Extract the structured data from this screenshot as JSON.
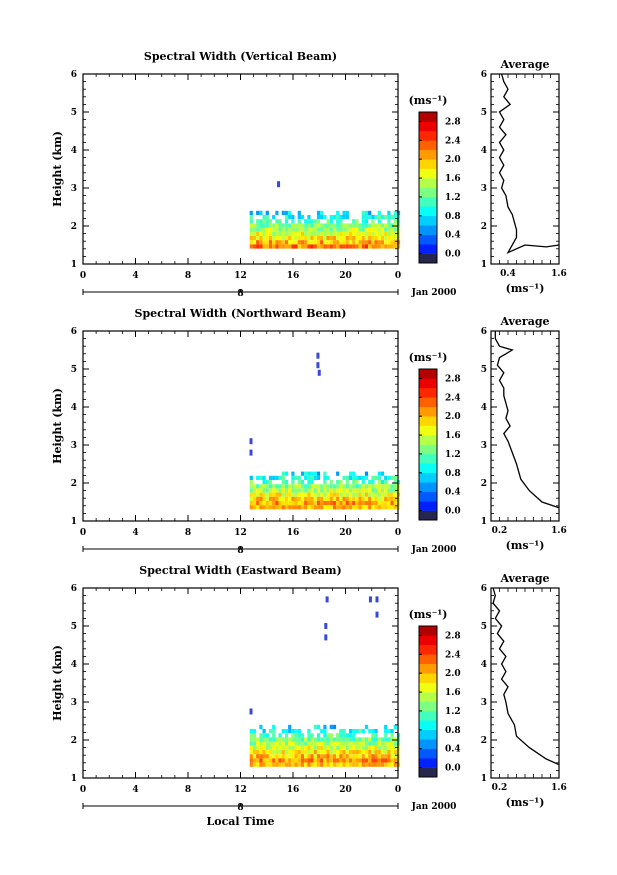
{
  "chart_data": [
    {
      "type": "heatmap",
      "title": "Spectral Width (Vertical Beam)",
      "ylabel": "Height (km)",
      "xlabel": "",
      "x_ticks": [
        "0",
        "4",
        "8",
        "12",
        "16",
        "20",
        "0"
      ],
      "xlim": [
        0,
        24
      ],
      "y_ticks": [
        "1",
        "2",
        "3",
        "4",
        "5",
        "6"
      ],
      "ylim": [
        1,
        6
      ],
      "date_label": "8",
      "date_suffix": "Jan 2000",
      "data_start_hour": 12.7,
      "data_top_km": 2.4,
      "data_bottom_km": 1.4,
      "isolated_points": [
        {
          "x": 14.9,
          "y": 3.1
        }
      ],
      "colorbar": {
        "unit": "(ms⁻¹)",
        "ticks": [
          "0.0",
          "0.4",
          "0.8",
          "1.2",
          "1.6",
          "2.0",
          "2.4",
          "2.8"
        ],
        "range": [
          0,
          3.2
        ]
      },
      "average": {
        "title": "Average",
        "x_ticks": [
          "0.4",
          "1.6"
        ],
        "xlim": [
          0,
          1.6
        ],
        "xlabel": "(ms⁻¹)",
        "y_ticks": [
          "1",
          "2",
          "3",
          "4",
          "5",
          "6"
        ],
        "ylim": [
          1,
          6
        ],
        "profile": [
          [
            1.6,
            1.5
          ],
          [
            1.3,
            1.45
          ],
          [
            0.8,
            1.5
          ],
          [
            0.4,
            1.3
          ],
          [
            0.6,
            1.7
          ],
          [
            0.6,
            1.9
          ],
          [
            0.55,
            2.1
          ],
          [
            0.5,
            2.3
          ],
          [
            0.4,
            2.5
          ],
          [
            0.35,
            2.8
          ],
          [
            0.25,
            3.0
          ],
          [
            0.3,
            3.2
          ],
          [
            0.2,
            3.4
          ],
          [
            0.3,
            3.6
          ],
          [
            0.2,
            3.8
          ],
          [
            0.3,
            4.0
          ],
          [
            0.2,
            4.2
          ],
          [
            0.35,
            4.4
          ],
          [
            0.2,
            4.6
          ],
          [
            0.3,
            4.8
          ],
          [
            0.2,
            5.0
          ],
          [
            0.45,
            5.2
          ],
          [
            0.3,
            5.4
          ],
          [
            0.4,
            5.6
          ],
          [
            0.3,
            5.8
          ],
          [
            0.25,
            6.0
          ]
        ]
      }
    },
    {
      "type": "heatmap",
      "title": "Spectral Width (Northward Beam)",
      "ylabel": "Height (km)",
      "xlabel": "",
      "x_ticks": [
        "0",
        "4",
        "8",
        "12",
        "16",
        "20",
        "0"
      ],
      "xlim": [
        0,
        24
      ],
      "y_ticks": [
        "1",
        "2",
        "3",
        "4",
        "5",
        "6"
      ],
      "ylim": [
        1,
        6
      ],
      "date_label": "8",
      "date_suffix": "Jan 2000",
      "data_start_hour": 12.7,
      "data_top_km": 2.3,
      "data_bottom_km": 1.35,
      "isolated_points": [
        {
          "x": 17.9,
          "y": 5.35
        },
        {
          "x": 17.9,
          "y": 5.1
        },
        {
          "x": 18.0,
          "y": 4.9
        },
        {
          "x": 12.8,
          "y": 3.1
        },
        {
          "x": 12.8,
          "y": 2.8
        }
      ],
      "colorbar": {
        "unit": "(ms⁻¹)",
        "ticks": [
          "0.0",
          "0.4",
          "0.8",
          "1.2",
          "1.6",
          "2.0",
          "2.4",
          "2.8"
        ],
        "range": [
          0,
          3.2
        ]
      },
      "average": {
        "title": "Average",
        "x_ticks": [
          "0.2",
          "1.6"
        ],
        "xlim": [
          0,
          1.6
        ],
        "xlabel": "(ms⁻¹)",
        "y_ticks": [
          "1",
          "2",
          "3",
          "4",
          "5",
          "6"
        ],
        "ylim": [
          1,
          6
        ],
        "profile": [
          [
            1.6,
            1.35
          ],
          [
            1.2,
            1.5
          ],
          [
            0.9,
            1.8
          ],
          [
            0.7,
            2.1
          ],
          [
            0.6,
            2.5
          ],
          [
            0.5,
            2.8
          ],
          [
            0.4,
            3.1
          ],
          [
            0.3,
            3.3
          ],
          [
            0.45,
            3.5
          ],
          [
            0.35,
            3.7
          ],
          [
            0.4,
            3.9
          ],
          [
            0.35,
            4.1
          ],
          [
            0.3,
            4.3
          ],
          [
            0.3,
            4.5
          ],
          [
            0.2,
            4.7
          ],
          [
            0.3,
            4.9
          ],
          [
            0.15,
            5.1
          ],
          [
            0.2,
            5.3
          ],
          [
            0.5,
            5.5
          ],
          [
            0.2,
            5.6
          ],
          [
            0.1,
            5.8
          ],
          [
            0.1,
            6.0
          ]
        ]
      }
    },
    {
      "type": "heatmap",
      "title": "Spectral Width (Eastward Beam)",
      "ylabel": "Height (km)",
      "xlabel": "Local Time",
      "x_ticks": [
        "0",
        "4",
        "8",
        "12",
        "16",
        "20",
        "0"
      ],
      "xlim": [
        0,
        24
      ],
      "y_ticks": [
        "1",
        "2",
        "3",
        "4",
        "5",
        "6"
      ],
      "ylim": [
        1,
        6
      ],
      "date_label": "8",
      "date_suffix": "Jan 2000",
      "data_start_hour": 12.7,
      "data_top_km": 2.4,
      "data_bottom_km": 1.35,
      "isolated_points": [
        {
          "x": 18.6,
          "y": 5.7
        },
        {
          "x": 18.5,
          "y": 5.0
        },
        {
          "x": 18.5,
          "y": 4.7
        },
        {
          "x": 21.9,
          "y": 5.7
        },
        {
          "x": 22.4,
          "y": 5.7
        },
        {
          "x": 22.4,
          "y": 5.3
        },
        {
          "x": 12.8,
          "y": 2.75
        }
      ],
      "colorbar": {
        "unit": "(ms⁻¹)",
        "ticks": [
          "0.0",
          "0.4",
          "0.8",
          "1.2",
          "1.6",
          "2.0",
          "2.4",
          "2.8"
        ],
        "range": [
          0,
          3.2
        ]
      },
      "average": {
        "title": "Average",
        "x_ticks": [
          "0.2",
          "1.6"
        ],
        "xlim": [
          0,
          1.6
        ],
        "xlabel": "(ms⁻¹)",
        "y_ticks": [
          "1",
          "2",
          "3",
          "4",
          "5",
          "6"
        ],
        "ylim": [
          1,
          6
        ],
        "profile": [
          [
            1.6,
            1.35
          ],
          [
            1.3,
            1.5
          ],
          [
            0.9,
            1.8
          ],
          [
            0.6,
            2.1
          ],
          [
            0.55,
            2.4
          ],
          [
            0.4,
            2.7
          ],
          [
            0.35,
            3.0
          ],
          [
            0.3,
            3.2
          ],
          [
            0.4,
            3.4
          ],
          [
            0.25,
            3.6
          ],
          [
            0.35,
            3.8
          ],
          [
            0.25,
            4.0
          ],
          [
            0.35,
            4.2
          ],
          [
            0.2,
            4.4
          ],
          [
            0.3,
            4.6
          ],
          [
            0.15,
            4.8
          ],
          [
            0.25,
            5.0
          ],
          [
            0.1,
            5.2
          ],
          [
            0.2,
            5.4
          ],
          [
            0.05,
            5.6
          ],
          [
            0.1,
            5.8
          ],
          [
            0.05,
            6.0
          ]
        ]
      }
    }
  ]
}
